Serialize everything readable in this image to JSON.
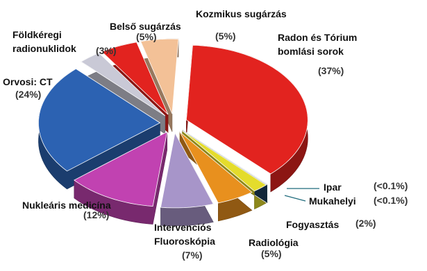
{
  "chart_data": {
    "type": "pie",
    "categories": [
      "Kozmikus sugárzás",
      "Radon és Tórium bomlási sorok",
      "Ipar",
      "Mukahelyi",
      "Fogyasztás",
      "Radiológia",
      "Intervenciós Fluoroskópia",
      "Nukleáris medicína",
      "Orvosi: CT",
      "Földkéregi radionuklidok",
      "Belső sugárzás"
    ],
    "values": [
      5,
      37,
      0.05,
      0.05,
      2,
      5,
      7,
      12,
      24,
      3,
      5
    ],
    "value_labels": [
      "(5%)",
      "(37%)",
      "(<0.1%)",
      "(<0.1%)",
      "(2%)",
      "(5%)",
      "(7%)",
      "(12%)",
      "(24%)",
      "(3%)",
      "(5%)"
    ],
    "colors": [
      "#f3c197",
      "#e2231f",
      "#1f6b7c",
      "#1c3f5c",
      "#e4dc2c",
      "#e8901e",
      "#a795c9",
      "#c142b1",
      "#2c62b2",
      "#c9c9d6",
      "#e2231f"
    ]
  }
}
